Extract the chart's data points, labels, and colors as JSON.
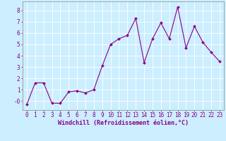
{
  "x": [
    0,
    1,
    2,
    3,
    4,
    5,
    6,
    7,
    8,
    9,
    10,
    11,
    12,
    13,
    14,
    15,
    16,
    17,
    18,
    19,
    20,
    21,
    22,
    23
  ],
  "y": [
    -0.3,
    1.6,
    1.6,
    -0.2,
    -0.2,
    0.8,
    0.9,
    0.7,
    1.0,
    3.1,
    5.0,
    5.5,
    5.8,
    7.3,
    3.4,
    5.5,
    6.9,
    5.5,
    8.3,
    4.7,
    6.6,
    5.2,
    4.3,
    3.5
  ],
  "line_color": "#880088",
  "marker": "D",
  "marker_size": 2.0,
  "line_width": 0.8,
  "xlabel": "Windchill (Refroidissement éolien,°C)",
  "xlabel_fontsize": 6.0,
  "xlim": [
    -0.5,
    23.5
  ],
  "ylim": [
    -0.8,
    8.8
  ],
  "ytick_values": [
    0,
    1,
    2,
    3,
    4,
    5,
    6,
    7,
    8
  ],
  "ytick_labels": [
    "-0",
    "1",
    "2",
    "3",
    "4",
    "5",
    "6",
    "7",
    "8"
  ],
  "xticks": [
    0,
    1,
    2,
    3,
    4,
    5,
    6,
    7,
    8,
    9,
    10,
    11,
    12,
    13,
    14,
    15,
    16,
    17,
    18,
    19,
    20,
    21,
    22,
    23
  ],
  "bg_color": "#cceeff",
  "grid_color": "#ffffff",
  "tick_label_color": "#880088",
  "tick_fontsize": 5.5,
  "spine_color": "#888888"
}
